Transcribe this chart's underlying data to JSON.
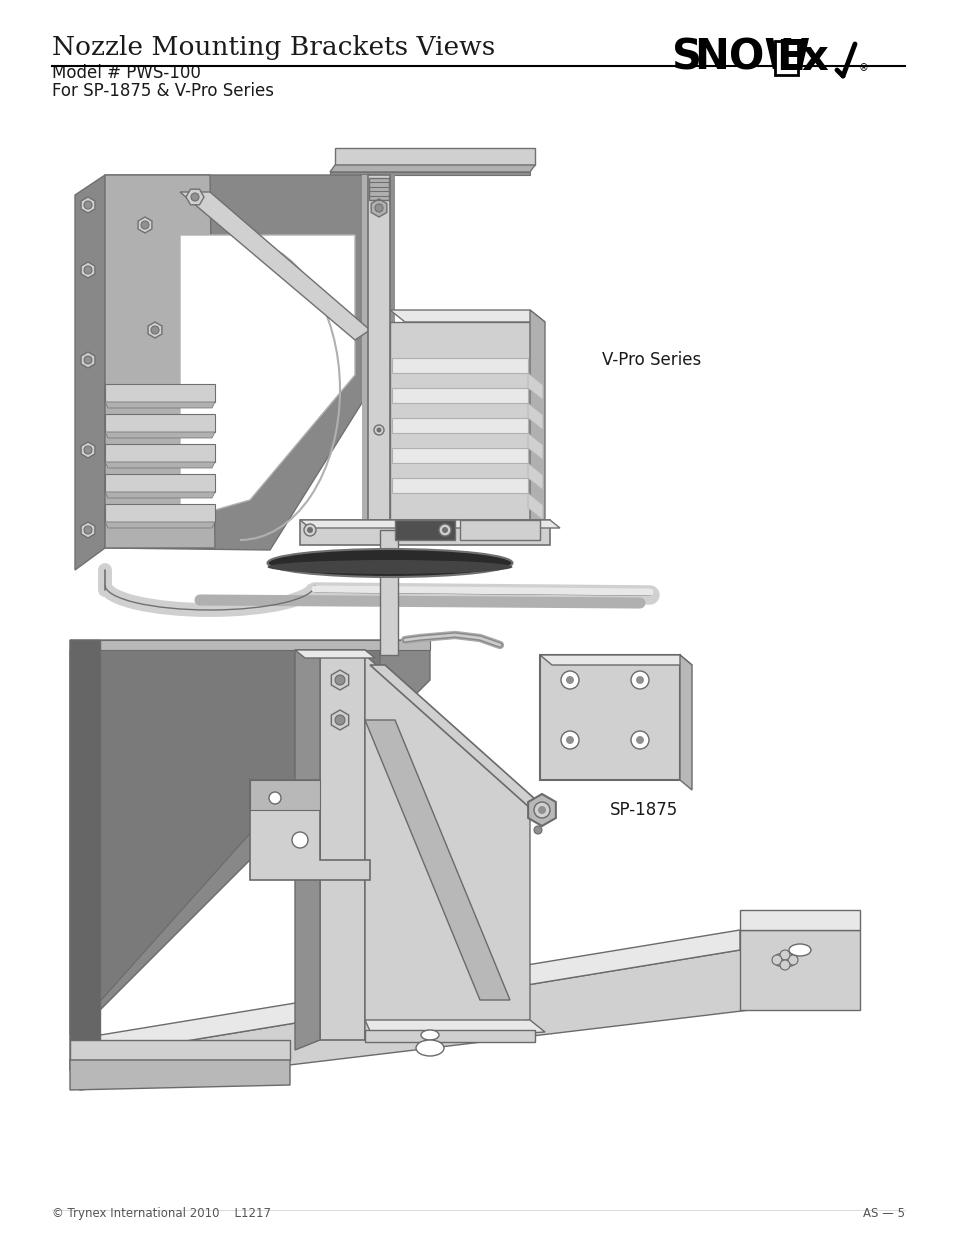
{
  "page_bg": "#ffffff",
  "title": "Nozzle Mounting Brackets Views",
  "model_line": "Model # PWS-100",
  "series_line": "For SP-1875 & V-Pro Series",
  "label_vpro": "V-Pro Series",
  "label_sp1875": "SP-1875",
  "footer_left": "© Trynex International 2010    L1217",
  "footer_right": "AS — 5",
  "title_fontsize": 19,
  "subtitle_fontsize": 12,
  "label_fontsize": 12,
  "footer_fontsize": 8.5,
  "text_color": "#1a1a1a",
  "fig_width": 9.54,
  "fig_height": 12.35,
  "dpi": 100
}
